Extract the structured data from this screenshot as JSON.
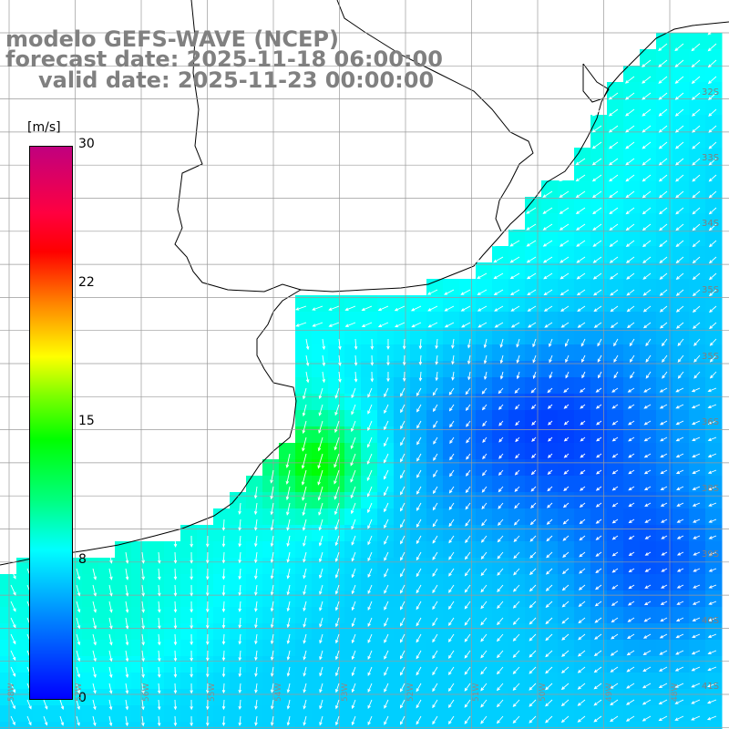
{
  "header": {
    "model": "modelo GEFS-WAVE (NCEP)",
    "forecast": "forecast date: 2025-11-18 06:00:00",
    "valid": "valid date: 2025-11-23 00:00:00"
  },
  "colorbar": {
    "unit": "[m/s]",
    "ticks": [
      "30",
      "22",
      "15",
      "8",
      "0"
    ],
    "stops": [
      "#0000ff",
      "#007fff",
      "#00ffff",
      "#00ff00",
      "#ffff00",
      "#ff7f00",
      "#ff0000",
      "#c0007f"
    ]
  },
  "lat_labels": [
    "32S",
    "33S",
    "34S",
    "35S",
    "35S",
    "36S",
    "37S",
    "38S",
    "39S",
    "40S",
    "41S"
  ],
  "lon_labels": [
    "58W",
    "57W",
    "56W",
    "55W",
    "54W",
    "53W",
    "52W",
    "51W",
    "50W",
    "49W",
    "48W"
  ],
  "colors": {
    "land": "#ffffff",
    "grid": "#9a9a9a",
    "coast": "#000000",
    "arrow": "#ffffff",
    "title": "#808080"
  }
}
